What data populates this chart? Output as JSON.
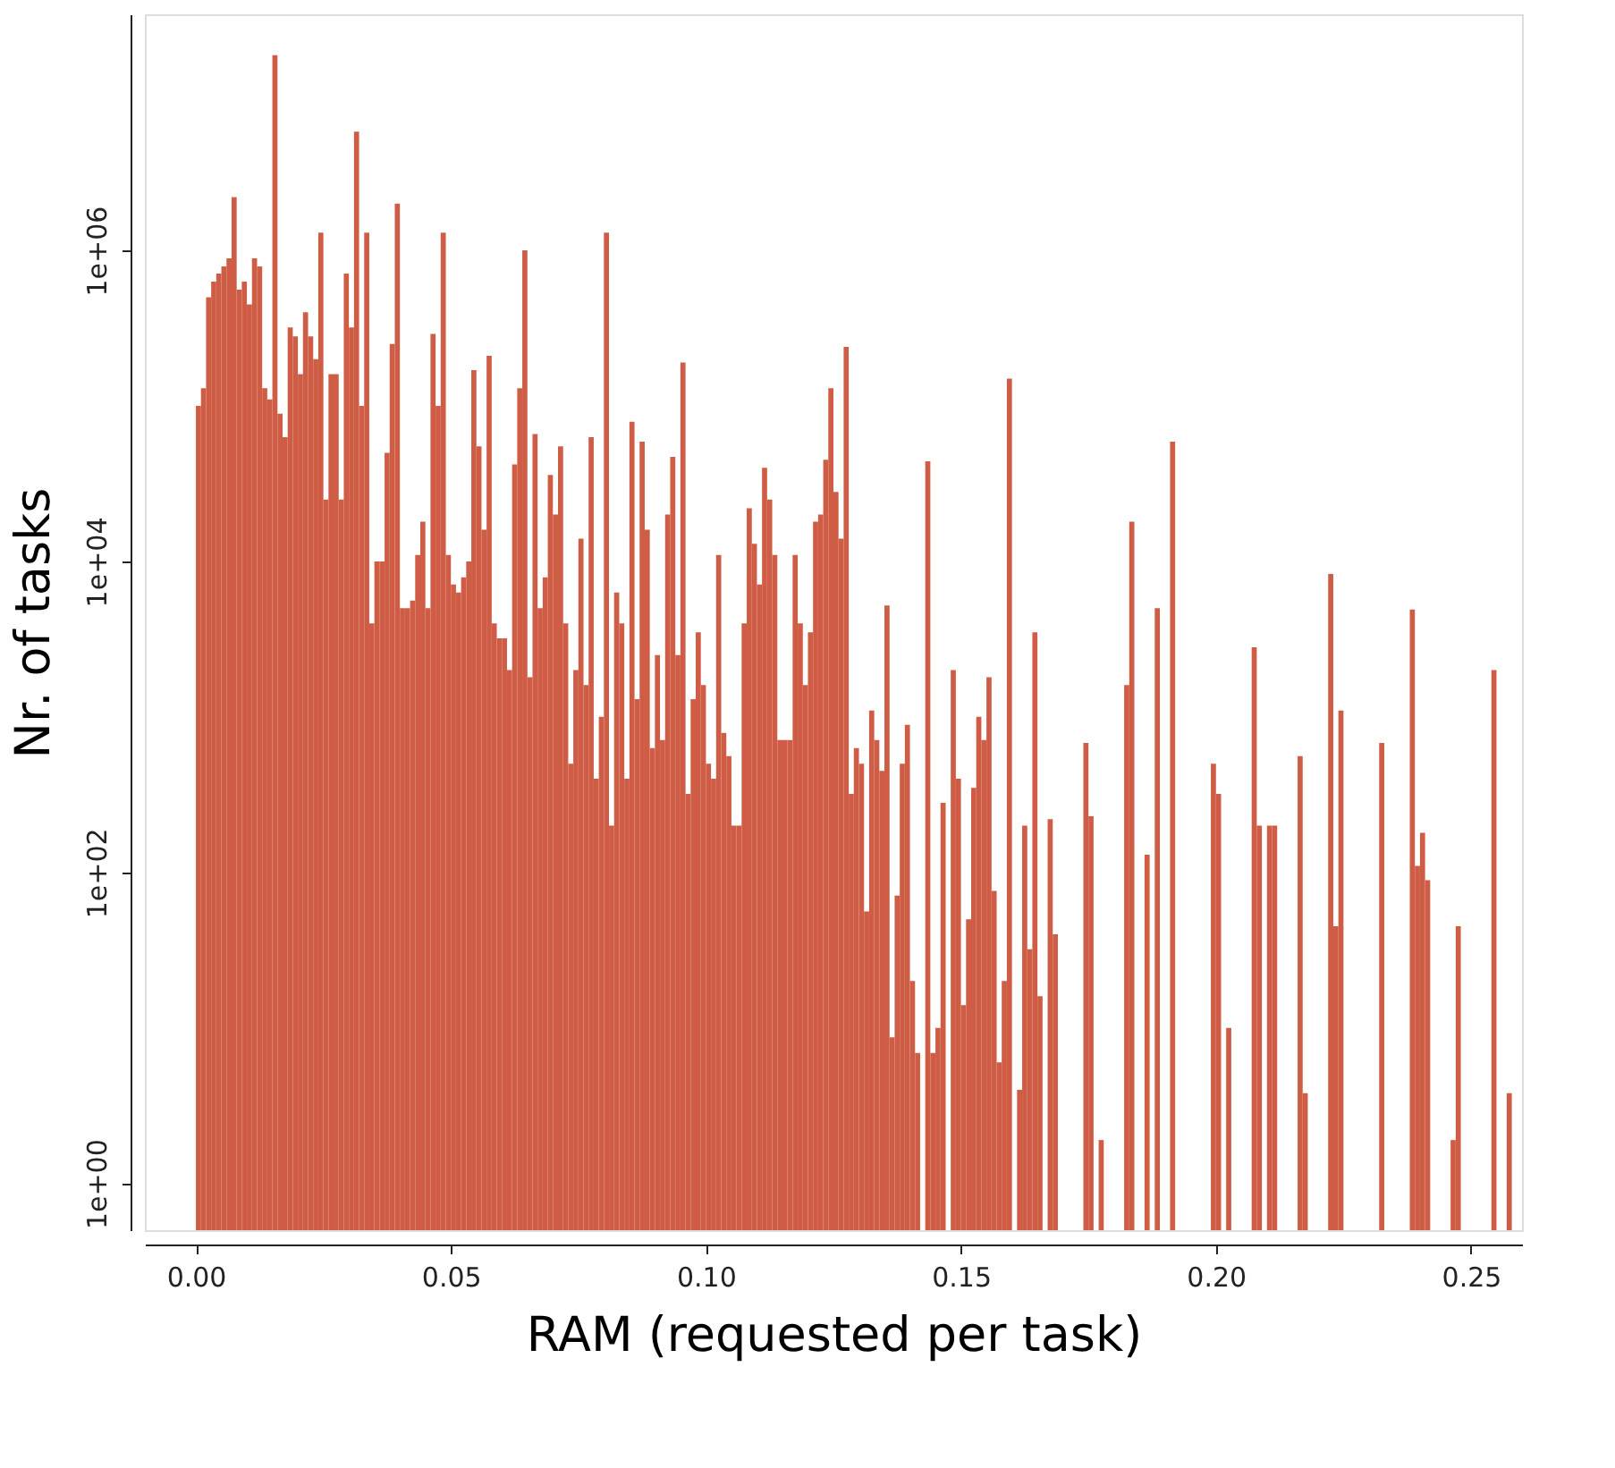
{
  "chart_data": {
    "type": "histogram",
    "xlabel": "RAM (requested per task)",
    "ylabel": "Nr. of tasks",
    "color": "#cf5c45",
    "log": "y",
    "xlim": [
      -0.01,
      0.26
    ],
    "xticks": [
      {
        "value": 0,
        "label": "0.00"
      },
      {
        "value": 0.05,
        "label": "0.05"
      },
      {
        "value": 0.1,
        "label": "0.10"
      },
      {
        "value": 0.15,
        "label": "0.15"
      },
      {
        "value": 0.2,
        "label": "0.20"
      },
      {
        "value": 0.25,
        "label": "0.25"
      }
    ],
    "ylim": [
      0.5,
      33000000
    ],
    "yticks": [
      {
        "value": 1,
        "label": "1e+00"
      },
      {
        "value": 100,
        "label": "1e+02"
      },
      {
        "value": 10000,
        "label": "1e+04"
      },
      {
        "value": 1000000,
        "label": "1e+06"
      }
    ],
    "bins": [
      0,
      0.001,
      0.002,
      0.003,
      0.004,
      0.005,
      0.006,
      0.007,
      0.008,
      0.009,
      0.01,
      0.011,
      0.012,
      0.013,
      0.014,
      0.015,
      0.016,
      0.017,
      0.018,
      0.019,
      0.02,
      0.021,
      0.022,
      0.023,
      0.024,
      0.025,
      0.026,
      0.027,
      0.028,
      0.029,
      0.03,
      0.031,
      0.032,
      0.033,
      0.034,
      0.035,
      0.036,
      0.037,
      0.038,
      0.039,
      0.04,
      0.041,
      0.042,
      0.043,
      0.044,
      0.045,
      0.046,
      0.047,
      0.048,
      0.049,
      0.05,
      0.051,
      0.052,
      0.053,
      0.054,
      0.055,
      0.056,
      0.057,
      0.058,
      0.059,
      0.06,
      0.061,
      0.062,
      0.063,
      0.064,
      0.065,
      0.066,
      0.067,
      0.068,
      0.069,
      0.07,
      0.071,
      0.072,
      0.073,
      0.074,
      0.075,
      0.076,
      0.077,
      0.078,
      0.079,
      0.08,
      0.081,
      0.082,
      0.083,
      0.084,
      0.085,
      0.086,
      0.087,
      0.088,
      0.089,
      0.09,
      0.091,
      0.092,
      0.093,
      0.094,
      0.095,
      0.096,
      0.097,
      0.098,
      0.099,
      0.1,
      0.101,
      0.102,
      0.103,
      0.104,
      0.105,
      0.106,
      0.107,
      0.108,
      0.109,
      0.11,
      0.111,
      0.112,
      0.113,
      0.114,
      0.115,
      0.116,
      0.117,
      0.118,
      0.119,
      0.12,
      0.121,
      0.122,
      0.123,
      0.124,
      0.125,
      0.126,
      0.127,
      0.128,
      0.129,
      0.13,
      0.131,
      0.132,
      0.133,
      0.134,
      0.135,
      0.136,
      0.137,
      0.138,
      0.139,
      0.14,
      0.141,
      0.142,
      0.143,
      0.144,
      0.145,
      0.146,
      0.147,
      0.148,
      0.149,
      0.15,
      0.151,
      0.152,
      0.153,
      0.154,
      0.155,
      0.156,
      0.157,
      0.158,
      0.159,
      0.16,
      0.161,
      0.162,
      0.163,
      0.164,
      0.165,
      0.166,
      0.167,
      0.168,
      0.169,
      0.17,
      0.171,
      0.172,
      0.173,
      0.174,
      0.175,
      0.176,
      0.177,
      0.178,
      0.179,
      0.18,
      0.181,
      0.182,
      0.183,
      0.184,
      0.185,
      0.186,
      0.187,
      0.188,
      0.189,
      0.19,
      0.191,
      0.192,
      0.193,
      0.194,
      0.195,
      0.196,
      0.197,
      0.198,
      0.199,
      0.2,
      0.201,
      0.202,
      0.203,
      0.204,
      0.205,
      0.206,
      0.207,
      0.208,
      0.209,
      0.21,
      0.211,
      0.212,
      0.213,
      0.214,
      0.215,
      0.216,
      0.217,
      0.218,
      0.219,
      0.22,
      0.221,
      0.222,
      0.223,
      0.224,
      0.225,
      0.226,
      0.227,
      0.228,
      0.229,
      0.23,
      0.231,
      0.232,
      0.233,
      0.234,
      0.235,
      0.236,
      0.237,
      0.238,
      0.239,
      0.24,
      0.241,
      0.242,
      0.243,
      0.244,
      0.245,
      0.246,
      0.247,
      0.248,
      0.249,
      0.25,
      0.251,
      0.252,
      0.253,
      0.254,
      0.255,
      0.256,
      0.257,
      0.258
    ],
    "values": [
      100000,
      130000,
      500000,
      630000,
      710000,
      790000,
      890000,
      2200000,
      560000,
      630000,
      450000,
      890000,
      790000,
      130000,
      110000,
      18000000,
      89000,
      63000,
      320000,
      280000,
      160000,
      400000,
      280000,
      200000,
      1300000,
      25000,
      160000,
      160000,
      25000,
      710000,
      320000,
      5800000,
      100000,
      1300000,
      4000,
      10000,
      10000,
      50000,
      250000,
      2000000,
      5000,
      5000,
      5600,
      11000,
      18000,
      5000,
      290000,
      100000,
      1300000,
      11000,
      7100,
      6300,
      7900,
      10000,
      170000,
      55000,
      16000,
      210000,
      4000,
      3200,
      3200,
      2000,
      42000,
      130000,
      1000000,
      1800,
      66000,
      5000,
      7900,
      36000,
      20000,
      55000,
      4000,
      500,
      2000,
      14000,
      1600,
      63000,
      400,
      1000,
      1300000,
      200,
      6300,
      4000,
      400,
      79000,
      1300,
      59000,
      16000,
      630,
      2500,
      710,
      20000,
      47000,
      2500,
      190000,
      320,
      1300,
      3500,
      1600,
      500,
      400,
      11000,
      790,
      560,
      200,
      200,
      4000,
      22000,
      13000,
      7100,
      40000,
      25000,
      11000,
      710,
      710,
      710,
      11000,
      4000,
      1600,
      3500,
      18000,
      20000,
      45000,
      130000,
      28000,
      14000,
      240000,
      320,
      630,
      500,
      56,
      1100,
      710,
      450,
      5200,
      8.7,
      71,
      500,
      890,
      20,
      6.9,
      null,
      44000,
      6.9,
      10,
      280,
      null,
      2000,
      400,
      14,
      50,
      350,
      1000,
      710,
      1800,
      76,
      6,
      20,
      150000,
      null,
      4,
      200,
      32,
      3500,
      16,
      null,
      220,
      40,
      null,
      null,
      null,
      null,
      null,
      680,
      230,
      null,
      1.9,
      null,
      null,
      null,
      null,
      1600,
      18000,
      null,
      null,
      130,
      null,
      5000,
      null,
      null,
      59000,
      null,
      null,
      null,
      null,
      null,
      null,
      null,
      500,
      320,
      null,
      10,
      null,
      null,
      null,
      null,
      2800,
      200,
      null,
      200,
      200,
      null,
      null,
      null,
      null,
      560,
      3.8,
      null,
      null,
      null,
      null,
      8300,
      45,
      1100,
      null,
      null,
      null,
      null,
      null,
      null,
      null,
      680,
      null,
      null,
      null,
      null,
      null,
      4900,
      110,
      180,
      89,
      null,
      null,
      null,
      null,
      1.9,
      45,
      null,
      null,
      null,
      null,
      null,
      null,
      2000,
      null,
      null,
      3.8
    ]
  }
}
